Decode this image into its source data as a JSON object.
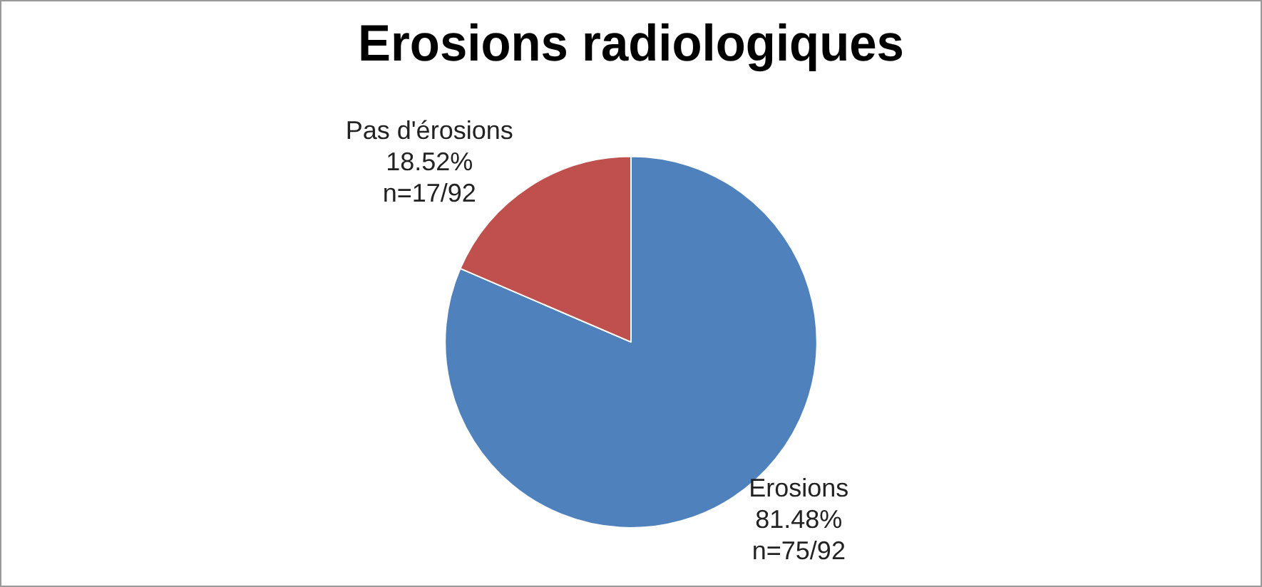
{
  "chart_data": {
    "type": "pie",
    "title": "Erosions radiologiques",
    "categories": [
      "Erosions",
      "Pas d'érosions"
    ],
    "values": [
      81.48,
      18.52
    ],
    "colors": [
      "#4f81bd",
      "#c0504d"
    ],
    "value_labels": [
      "81.48%\nn=75/92",
      "18.52%\nn=17/92"
    ],
    "legend": false
  }
}
